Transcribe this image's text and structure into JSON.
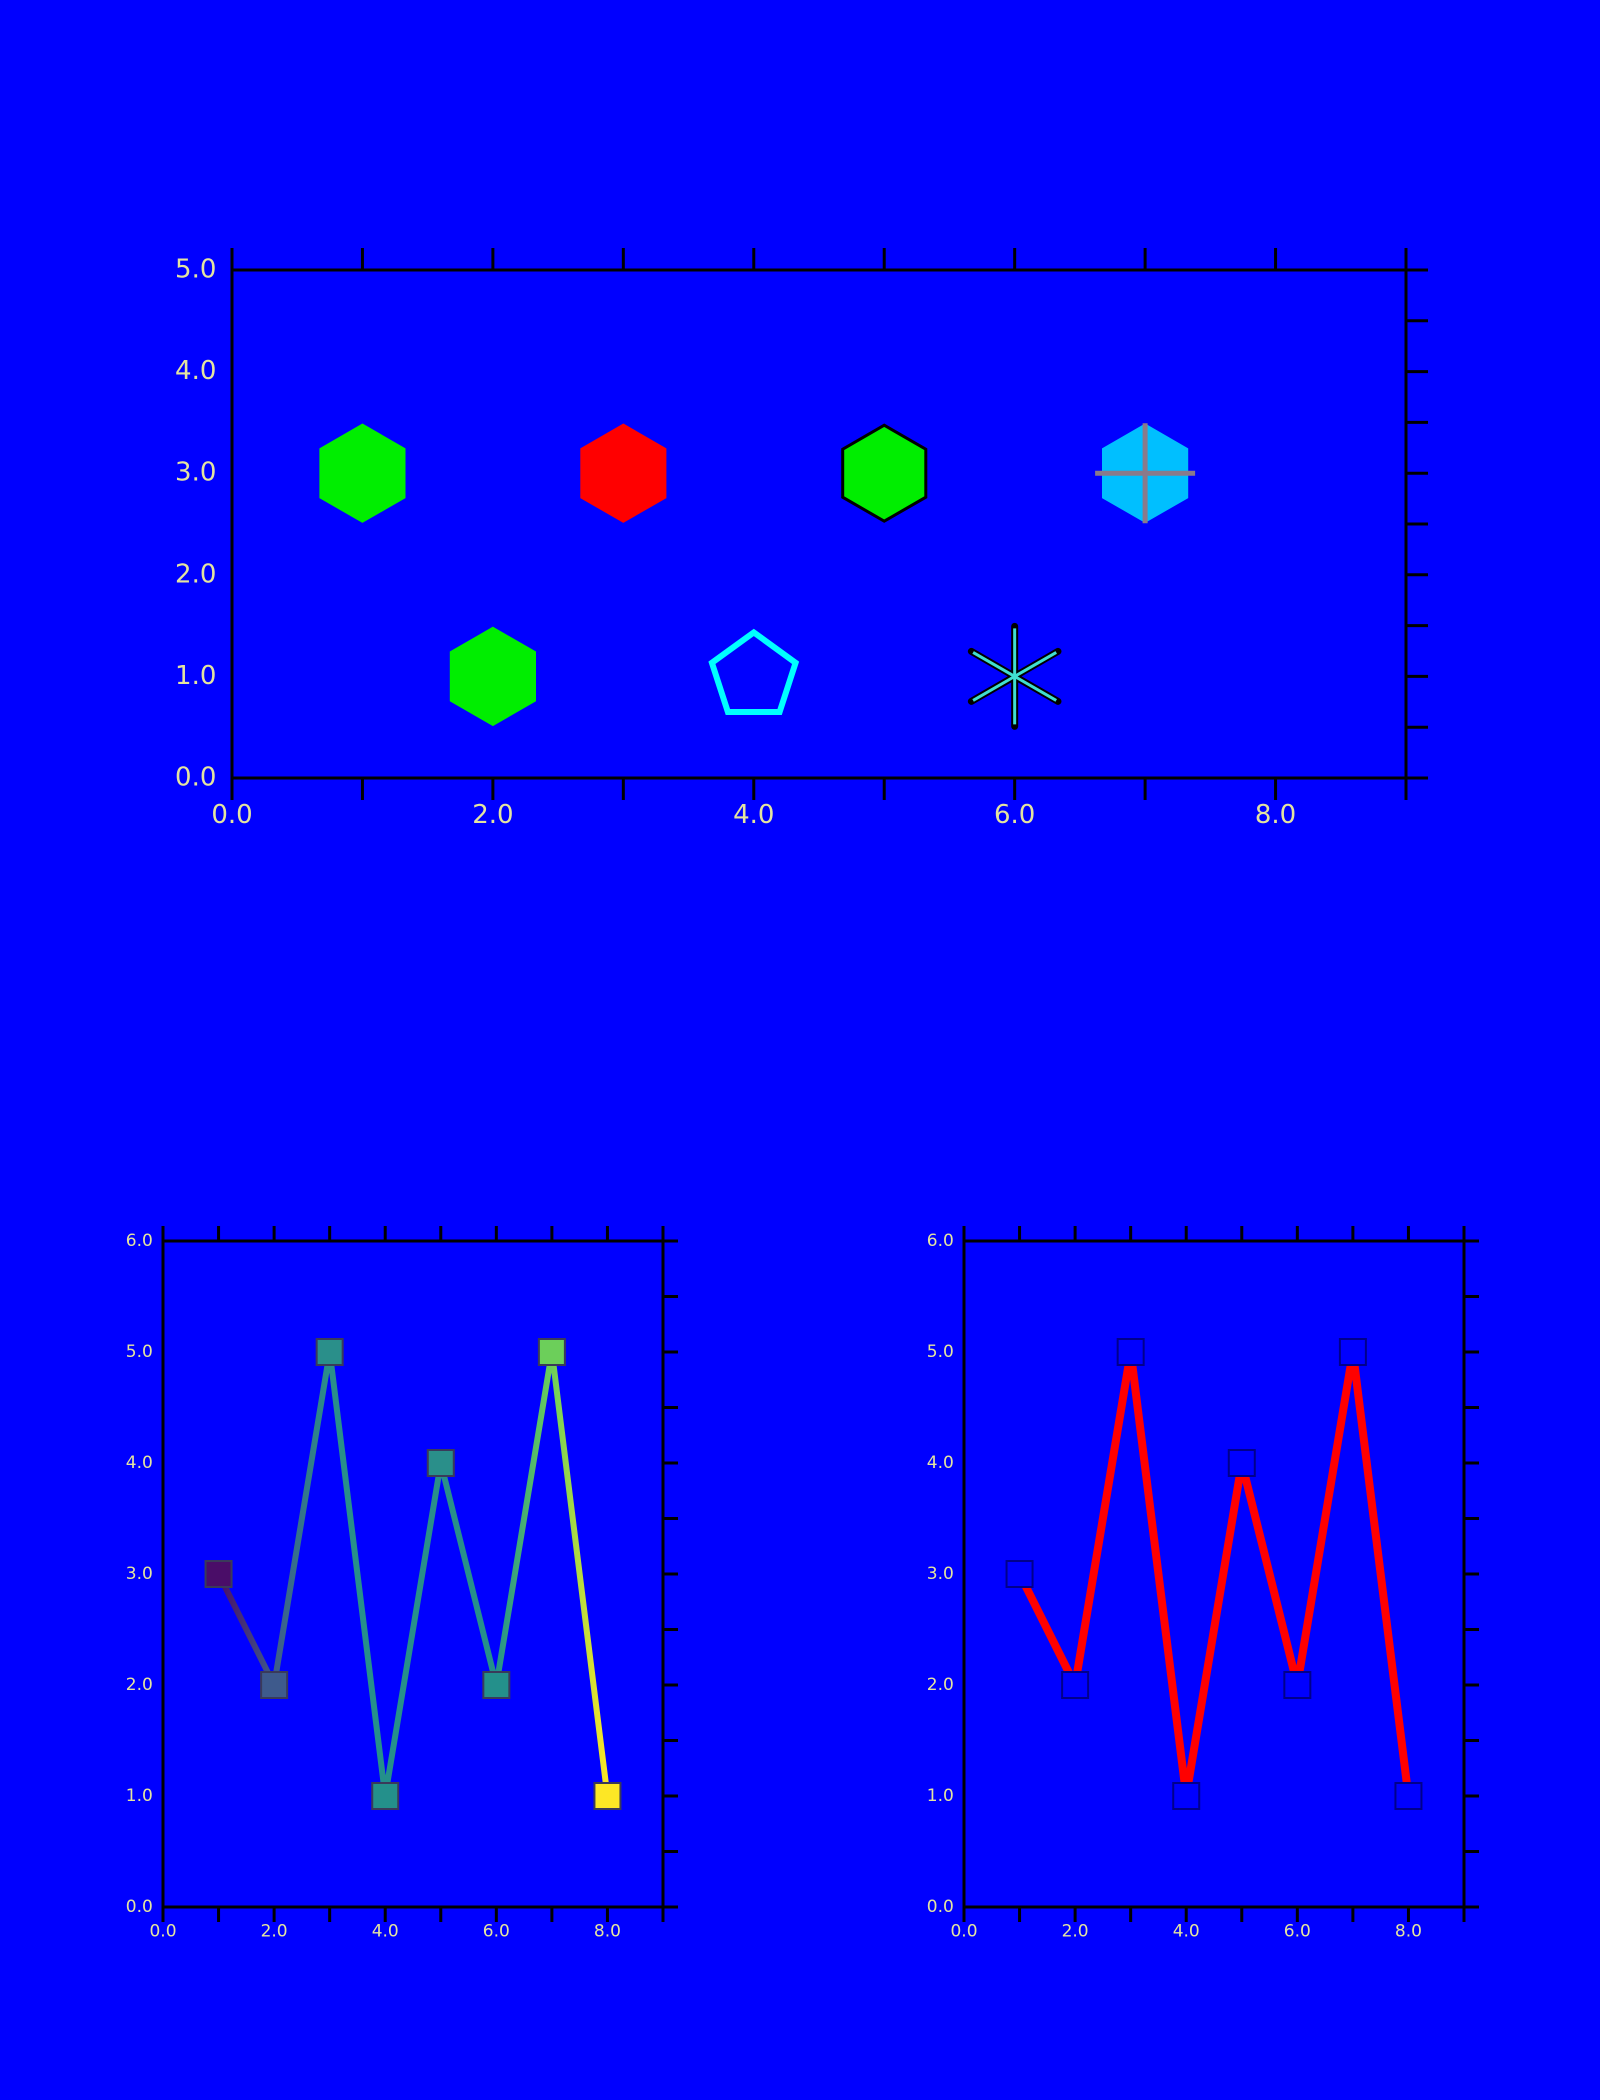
{
  "chart_data": [
    {
      "type": "scatter",
      "x": [
        1,
        3,
        5,
        7,
        2,
        4,
        6
      ],
      "y": [
        3,
        3,
        3,
        3,
        1,
        1,
        1
      ],
      "markers": [
        "hexagon",
        "hexagon",
        "hexagon",
        "hexagon_plus",
        "hexagon",
        "pentagon",
        "asterisk"
      ],
      "facecolors": [
        "#00ee00",
        "#ff0000",
        "#00ee00",
        "#00bfff",
        "#00ee00",
        "none",
        "#40e0d0"
      ],
      "edgecolors": [
        "#00ee00",
        "#ff0000",
        "#000000",
        "#00bfff",
        "#00ee00",
        "#00ffff",
        "#000000"
      ],
      "overlay_color": "#8a7a8a",
      "xlim": [
        0,
        9
      ],
      "ylim": [
        0,
        5
      ],
      "xticks": [
        {
          "value": 0,
          "label": "0.0"
        },
        {
          "value": 2,
          "label": "2.0"
        },
        {
          "value": 4,
          "label": "4.0"
        },
        {
          "value": 6,
          "label": "6.0"
        },
        {
          "value": 8,
          "label": "8.0"
        }
      ],
      "xminorticks": [
        1,
        3,
        5,
        7,
        9
      ],
      "yticks": [
        {
          "value": 0,
          "label": "0.0"
        },
        {
          "value": 1,
          "label": "1.0"
        },
        {
          "value": 2,
          "label": "2.0"
        },
        {
          "value": 3,
          "label": "3.0"
        },
        {
          "value": 4,
          "label": "4.0"
        },
        {
          "value": 5,
          "label": "5.0"
        }
      ],
      "yminorticks": [
        0.5,
        1.5,
        2.5,
        3.5,
        4.5
      ]
    },
    {
      "type": "line",
      "x": [
        1,
        2,
        3,
        4,
        5,
        6,
        7,
        8
      ],
      "y": [
        3,
        2,
        5,
        1,
        4,
        2,
        5,
        1
      ],
      "colors": [
        "#4a0d68",
        "#3e5a8c",
        "#2a8f8a",
        "#24908b",
        "#2a8f8a",
        "#24908b",
        "#6ccf5a",
        "#fde725"
      ],
      "marker_edgecolor": "#3a3a5a",
      "xlim": [
        0,
        9
      ],
      "ylim": [
        0,
        6
      ],
      "xticks": [
        {
          "value": 0,
          "label": "0.0"
        },
        {
          "value": 2,
          "label": "2.0"
        },
        {
          "value": 4,
          "label": "4.0"
        },
        {
          "value": 6,
          "label": "6.0"
        },
        {
          "value": 8,
          "label": "8.0"
        }
      ],
      "xminorticks": [
        1,
        3,
        5,
        7,
        9
      ],
      "yticks": [
        {
          "value": 0,
          "label": "0.0"
        },
        {
          "value": 1,
          "label": "1.0"
        },
        {
          "value": 2,
          "label": "2.0"
        },
        {
          "value": 3,
          "label": "3.0"
        },
        {
          "value": 4,
          "label": "4.0"
        },
        {
          "value": 5,
          "label": "5.0"
        },
        {
          "value": 6,
          "label": "6.0"
        }
      ],
      "yminorticks": [
        0.5,
        1.5,
        2.5,
        3.5,
        4.5,
        5.5
      ]
    },
    {
      "type": "line",
      "x": [
        1,
        2,
        3,
        4,
        5,
        6,
        7,
        8
      ],
      "y": [
        3,
        2,
        5,
        1,
        4,
        2,
        5,
        1
      ],
      "color": "#ff0000",
      "marker_facecolor": "#0000ff",
      "marker_edgecolor": "#00008b",
      "xlim": [
        0,
        9
      ],
      "ylim": [
        0,
        6
      ],
      "xticks": [
        {
          "value": 0,
          "label": "0.0"
        },
        {
          "value": 2,
          "label": "2.0"
        },
        {
          "value": 4,
          "label": "4.0"
        },
        {
          "value": 6,
          "label": "6.0"
        },
        {
          "value": 8,
          "label": "8.0"
        }
      ],
      "xminorticks": [
        1,
        3,
        5,
        7,
        9
      ],
      "yticks": [
        {
          "value": 0,
          "label": "0.0"
        },
        {
          "value": 1,
          "label": "1.0"
        },
        {
          "value": 2,
          "label": "2.0"
        },
        {
          "value": 3,
          "label": "3.0"
        },
        {
          "value": 4,
          "label": "4.0"
        },
        {
          "value": 5,
          "label": "5.0"
        },
        {
          "value": 6,
          "label": "6.0"
        }
      ],
      "yminorticks": [
        0.5,
        1.5,
        2.5,
        3.5,
        4.5,
        5.5
      ]
    }
  ]
}
